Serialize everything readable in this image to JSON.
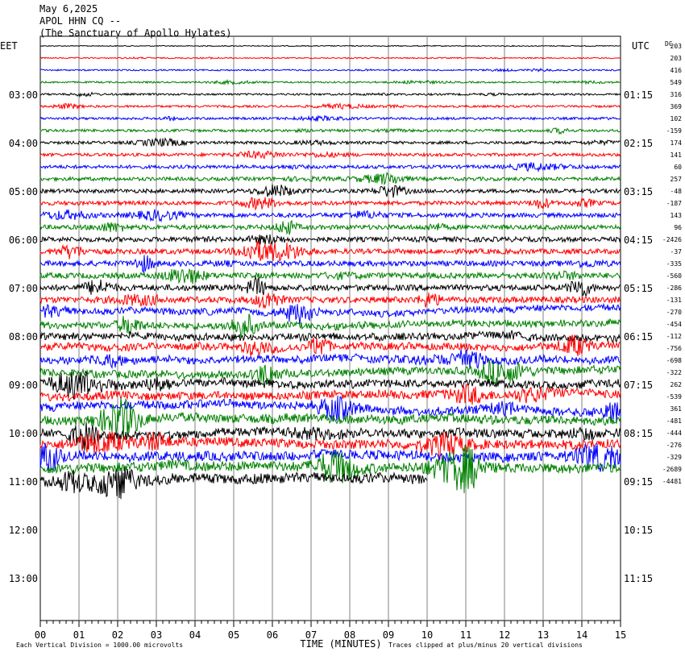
{
  "header": {
    "date": "May 6,2025",
    "station": "APOL HHN CQ --",
    "site": "(The Sanctuary of Apollo Hylates)"
  },
  "chart_data": {
    "type": "line",
    "title": "May 6,2025",
    "left_axis_label": "EET",
    "right_axis_label": "UTC",
    "dc_label": "DC",
    "xlabel": "TIME (MINUTES)",
    "x_ticks": [
      "00",
      "01",
      "02",
      "03",
      "04",
      "05",
      "06",
      "07",
      "08",
      "09",
      "10",
      "11",
      "12",
      "13",
      "14",
      "15"
    ],
    "xlim": [
      0,
      15
    ],
    "left_time_labels": [
      "03:00",
      "04:00",
      "05:00",
      "06:00",
      "07:00",
      "08:00",
      "09:00",
      "10:00",
      "11:00",
      "12:00",
      "13:00"
    ],
    "right_time_labels": [
      "01:15",
      "02:15",
      "03:15",
      "04:15",
      "05:15",
      "06:15",
      "07:15",
      "08:15",
      "09:15",
      "10:15",
      "11:15"
    ],
    "dc_offsets": [
      "203",
      "203",
      "416",
      "549",
      "316",
      "369",
      "102",
      "-159",
      "174",
      "141",
      "60",
      "257",
      "-48",
      "-187",
      "143",
      "96",
      "-2426",
      "-37",
      "-335",
      "-560",
      "-286",
      "-131",
      "-270",
      "-454",
      "-112",
      "-756",
      "-698",
      "-322",
      "262",
      "-539",
      "361",
      "-481",
      "-444",
      "-276",
      "-329",
      "-2689",
      "-4481"
    ],
    "trace_colors": [
      "#000000",
      "#ff0000",
      "#0000ff",
      "#008000"
    ],
    "footer_left": "Each Vertical Division = 1000.00 microvolts",
    "footer_right": "Traces clipped at plus/minus 20 vertical divisions",
    "last_trace_end_minute": 10
  }
}
